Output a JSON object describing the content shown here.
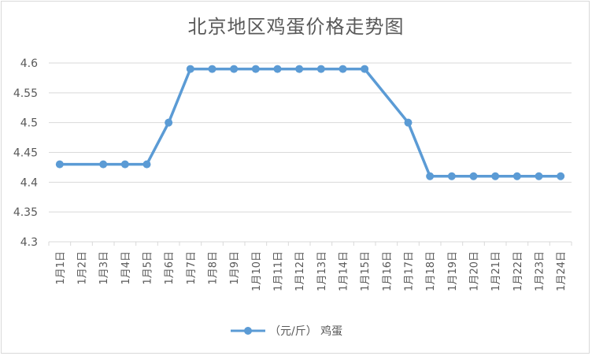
{
  "chart_data": {
    "type": "line",
    "title": "北京地区鸡蛋价格走势图",
    "categories": [
      "1月1日",
      "1月2日",
      "1月3日",
      "1月4日",
      "1月5日",
      "1月6日",
      "1月7日",
      "1月8日",
      "1月9日",
      "1月10日",
      "1月11日",
      "1月12日",
      "1月13日",
      "1月14日",
      "1月15日",
      "1月16日",
      "1月17日",
      "1月18日",
      "1月19日",
      "1月20日",
      "1月21日",
      "1月22日",
      "1月23日",
      "1月24日"
    ],
    "series": [
      {
        "name": "（元/斤） 鸡蛋",
        "color": "#5b9bd5",
        "values": [
          4.43,
          null,
          4.43,
          4.43,
          4.43,
          4.5,
          4.59,
          4.59,
          4.59,
          4.59,
          4.59,
          4.59,
          4.59,
          4.59,
          4.59,
          null,
          4.5,
          4.41,
          4.41,
          4.41,
          4.41,
          4.41,
          4.41,
          4.41
        ]
      }
    ],
    "ylim": [
      4.3,
      4.6
    ],
    "yticks": [
      "4.6",
      "4.55",
      "4.5",
      "4.45",
      "4.4",
      "4.35",
      "4.3"
    ],
    "grid": true,
    "legend": "bottom"
  }
}
